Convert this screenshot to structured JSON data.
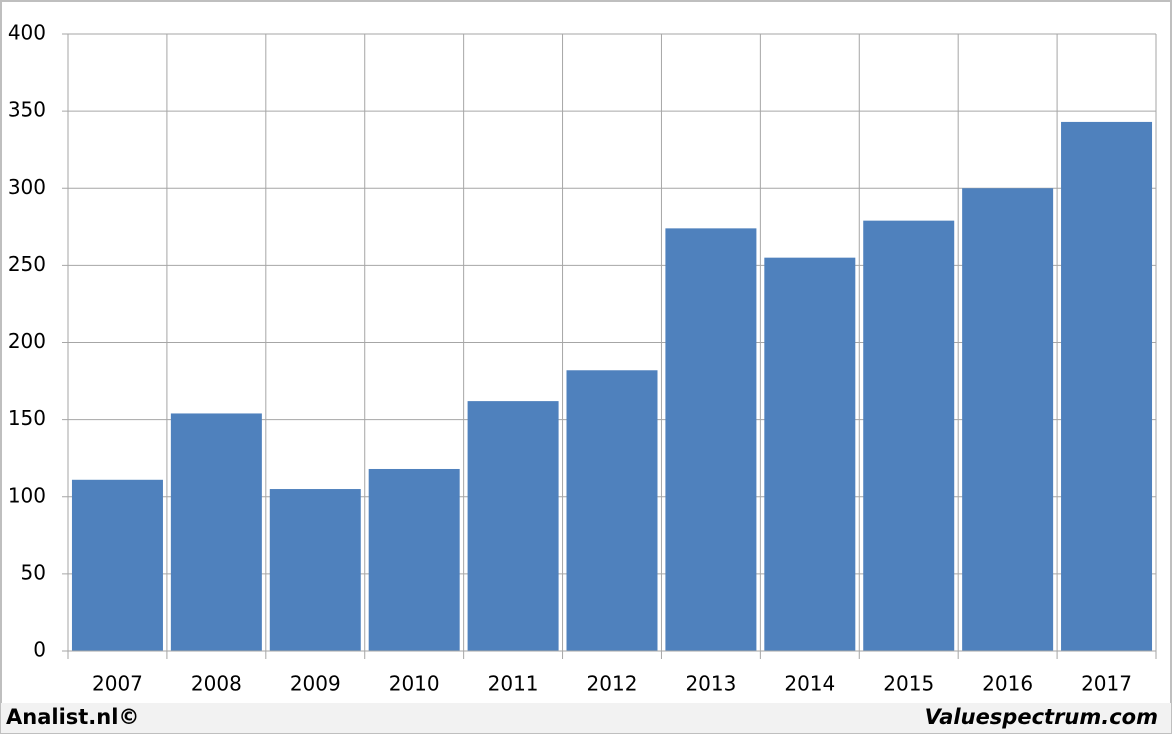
{
  "chart_data": {
    "type": "bar",
    "categories": [
      "2007",
      "2008",
      "2009",
      "2010",
      "2011",
      "2012",
      "2013",
      "2014",
      "2015",
      "2016",
      "2017"
    ],
    "values": [
      111,
      154,
      105,
      118,
      162,
      182,
      274,
      255,
      279,
      300,
      343
    ],
    "color": "#4f81bd",
    "ylim": [
      0,
      400
    ],
    "yticks": [
      0,
      50,
      100,
      150,
      200,
      250,
      300,
      350,
      400
    ],
    "grid": true,
    "footer_left": "Analist.nl©",
    "footer_right": "Valuespectrum.com"
  }
}
